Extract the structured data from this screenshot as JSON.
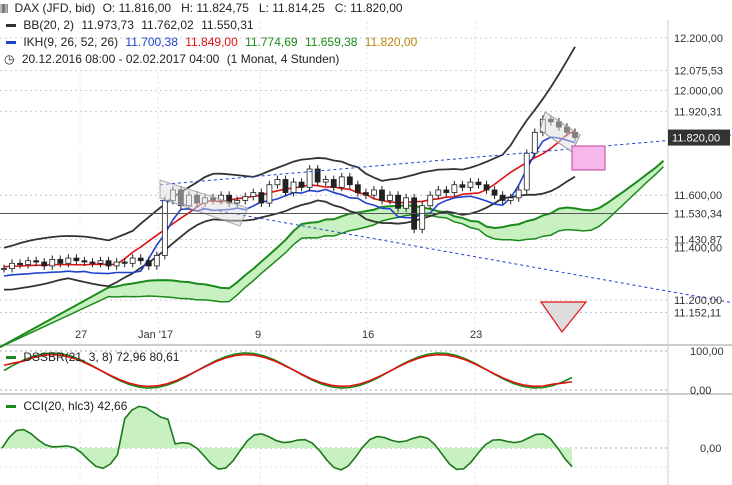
{
  "header": {
    "symbol": "DAX (JFD, bid)",
    "ohlc": "O: 11.816,00   H: 11.824,75   L: 11.814,25   C: 11.820,00",
    "bb_label": "BB(20, 2)",
    "bb_values": [
      "11.973,73",
      "11.762,02",
      "11.550,31"
    ],
    "ikh_label": "IKH(9, 26, 52, 26)",
    "ikh_values": [
      "11.700,38",
      "11.849,00",
      "11.774,69",
      "11.659,38",
      "11.820,00"
    ],
    "range": "20.12.2016 08:00 - 02.02.2017 04:00",
    "interval": "(1 Monat, 4 Stunden)"
  },
  "colors": {
    "bb": "#333333",
    "ikh_tenkan": "#2040d0",
    "ikh_kijun": "#e01010",
    "ikh_span": "#1a8a1a",
    "cloud": "#c8f0c0",
    "cci": "#1a7a1a",
    "dss": "#e01010",
    "trend": "#2040d0",
    "pink": "#f7b7e8"
  },
  "chart_data": [
    {
      "type": "candlestick",
      "title": "DAX (JFD, bid)",
      "y_ticks": [
        "12.200,00",
        "12.000,00",
        "11.600,00",
        "11.400,00",
        "11.200,00"
      ],
      "y_levels": [
        "12.075,53",
        "11.920,31",
        "11.820,00",
        "11.530,34",
        "11.430,87",
        "11.152,11"
      ],
      "x_ticks": [
        "27",
        "Jan '17",
        "9",
        "16",
        "23"
      ],
      "ylim": [
        11080,
        12280
      ],
      "close_series": [
        11320,
        11340,
        11335,
        11350,
        11345,
        11330,
        11355,
        11340,
        11360,
        11350,
        11345,
        11340,
        11350,
        11330,
        11345,
        11340,
        11360,
        11350,
        11330,
        11370,
        11580,
        11620,
        11560,
        11600,
        11570,
        11590,
        11580,
        11600,
        11570,
        11580,
        11595,
        11610,
        11570,
        11640,
        11660,
        11610,
        11650,
        11630,
        11700,
        11650,
        11660,
        11630,
        11670,
        11640,
        11610,
        11600,
        11620,
        11580,
        11600,
        11550,
        11590,
        11470,
        11560,
        11600,
        11620,
        11610,
        11640,
        11630,
        11650,
        11640,
        11620,
        11600,
        11580,
        11590,
        11620,
        11760,
        11840,
        11890,
        11880,
        11860,
        11840,
        11820
      ]
    },
    {
      "type": "line",
      "title": "DSSBR(21, 3, 8)",
      "values": [
        "72,96",
        "80,61"
      ],
      "y_ticks": [
        "100,00",
        "0,00"
      ],
      "ylim": [
        -5,
        105
      ]
    },
    {
      "type": "line",
      "title": "CCI(20, hlc3)",
      "values": [
        "42,66"
      ],
      "y_ticks": [
        "0,00"
      ]
    }
  ],
  "dss": {
    "label": "DSSBR(21, 3, 8)",
    "v1": "72,96",
    "v2": "80,61"
  },
  "cci": {
    "label": "CCI(20, hlc3)",
    "v1": "42,66"
  },
  "main_y_labels": [
    {
      "text": "12.200,00",
      "price": 12200
    },
    {
      "text": "12.075,53",
      "price": 12075.53
    },
    {
      "text": "12.000,00",
      "price": 12000
    },
    {
      "text": "11.920,31",
      "price": 11920.31
    },
    {
      "text": "11.820,00",
      "price": 11820,
      "boxed": true
    },
    {
      "text": "11.600,00",
      "price": 11600
    },
    {
      "text": "11.530,34",
      "price": 11530.34
    },
    {
      "text": "11.430,87",
      "price": 11430.87
    },
    {
      "text": "11.400,00",
      "price": 11400
    },
    {
      "text": "11.200,00",
      "price": 11200
    },
    {
      "text": "11.152,11",
      "price": 11152.11
    }
  ]
}
